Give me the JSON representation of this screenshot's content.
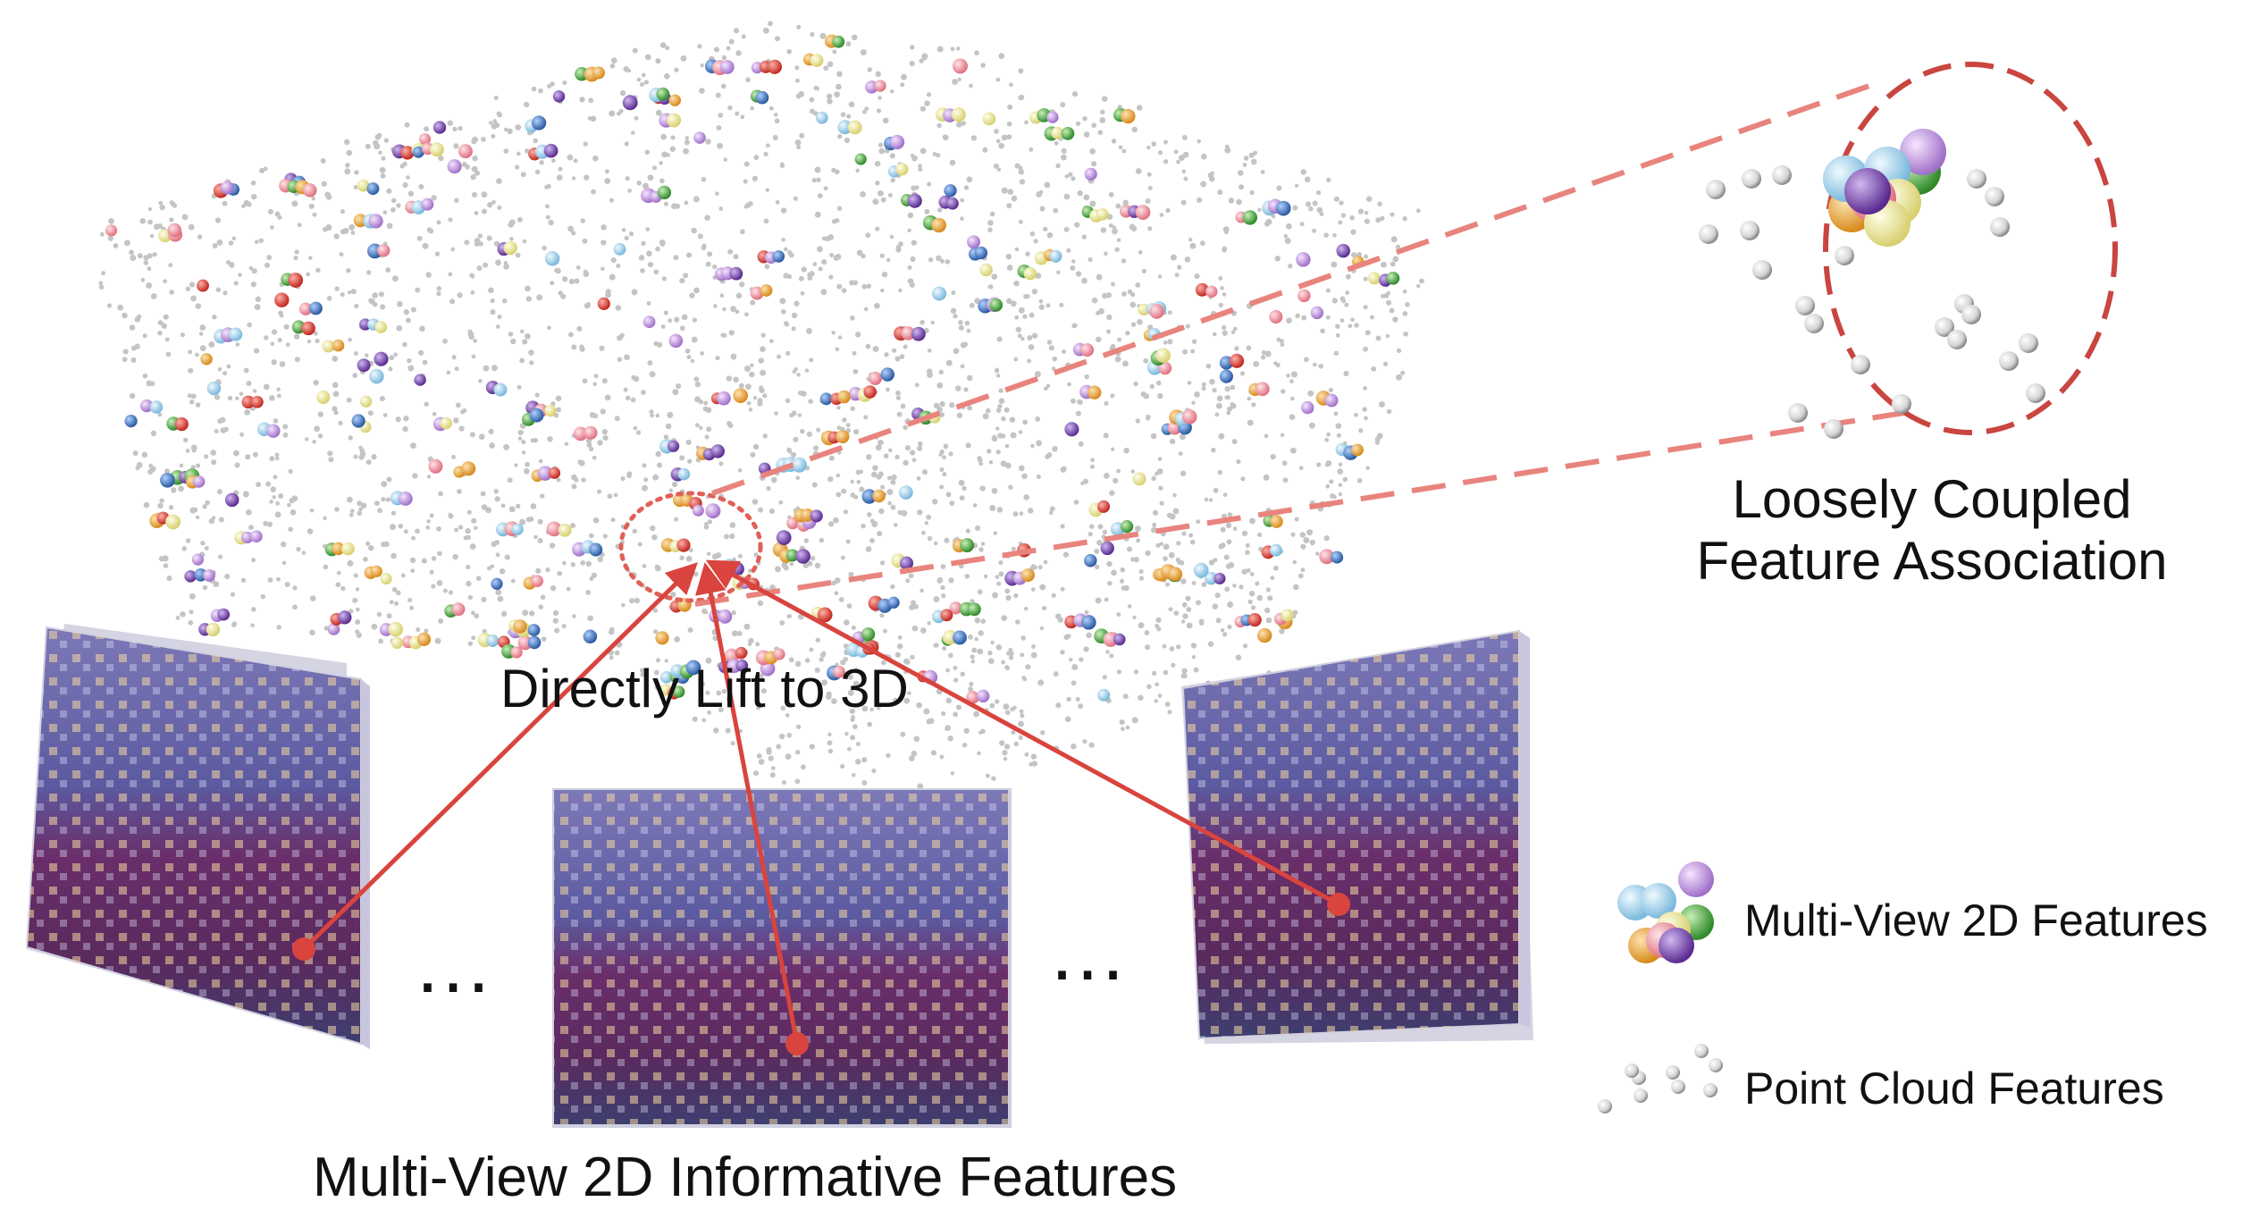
{
  "labels": {
    "directly_lift": "Directly Lift to 3D",
    "association_line1": "Loosely Coupled",
    "association_line2": "Feature Association",
    "informative": "Multi-View 2D Informative Features"
  },
  "legend": {
    "multi_view": "Multi-View 2D Features",
    "point_cloud": "Point Cloud Features"
  },
  "ellipsis": "…",
  "colors": {
    "accent_red": "#d9443e",
    "dashed_pink": "#e8847d",
    "frame_purple": "#5b4c8f",
    "frame_floor": "#6b2d5c",
    "point_gray": "#c8c8c8",
    "feature_palette": [
      "#e8a23a",
      "#9fd0ec",
      "#f5f0a0",
      "#5fb050",
      "#b07cd0",
      "#e06060",
      "#4a7fc0",
      "#f0a0a8",
      "#d8d8d8"
    ]
  }
}
